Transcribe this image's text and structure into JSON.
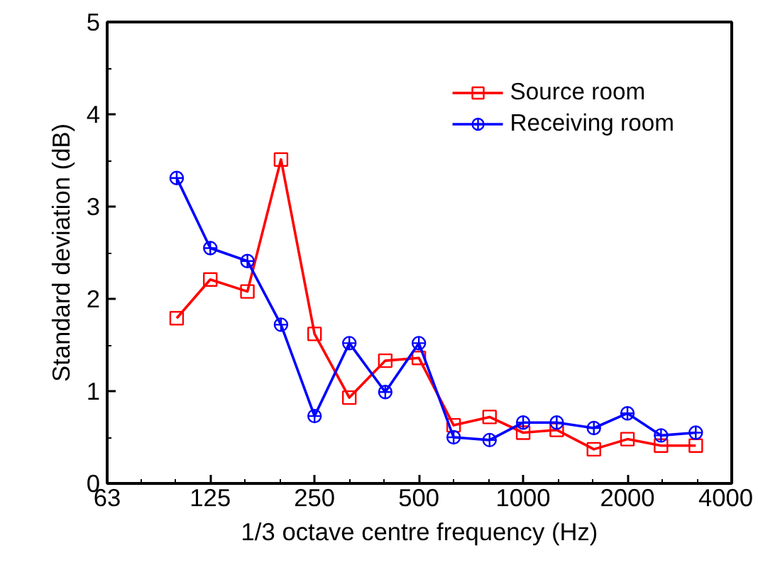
{
  "chart_data": {
    "type": "line",
    "xlabel": "1/3 octave centre frequency (Hz)",
    "ylabel": "Standard deviation (dB)",
    "x": [
      100,
      125,
      160,
      200,
      250,
      315,
      400,
      500,
      630,
      800,
      1000,
      1250,
      1600,
      2000,
      2500,
      3150
    ],
    "series": [
      {
        "name": "Source room",
        "color": "#ff0000",
        "marker": "square",
        "values": [
          1.79,
          2.21,
          2.08,
          3.51,
          1.62,
          0.93,
          1.33,
          1.36,
          0.63,
          0.72,
          0.55,
          0.58,
          0.37,
          0.48,
          0.41,
          0.41
        ]
      },
      {
        "name": "Receiving room",
        "color": "#0000ff",
        "marker": "circle",
        "values": [
          3.31,
          2.55,
          2.41,
          1.72,
          0.73,
          1.52,
          0.99,
          1.52,
          0.5,
          0.47,
          0.66,
          0.66,
          0.6,
          0.76,
          0.52,
          0.55
        ]
      }
    ],
    "log": "x",
    "xlim": [
      63,
      4000
    ],
    "xticks": [
      63,
      125,
      250,
      500,
      1000,
      2000,
      4000
    ],
    "ylim": [
      0,
      5
    ],
    "yticks": [
      0,
      1,
      2,
      3,
      4,
      5
    ],
    "grid": false,
    "legend": "top right",
    "line_style": "solid"
  }
}
